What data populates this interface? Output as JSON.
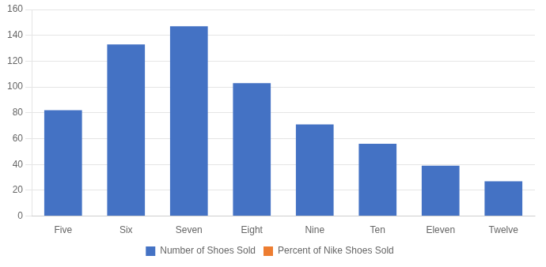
{
  "chart_data": {
    "type": "bar",
    "categories": [
      "Five",
      "Six",
      "Seven",
      "Eight",
      "Nine",
      "Ten",
      "Eleven",
      "Twelve"
    ],
    "series": [
      {
        "name": "Number of Shoes Sold",
        "color": "#4472C4",
        "values": [
          82,
          133,
          147,
          103,
          71,
          56,
          39,
          27
        ]
      },
      {
        "name": "Percent of Nike Shoes Sold",
        "color": "#ED7D31",
        "values": [
          null,
          null,
          null,
          null,
          null,
          null,
          null,
          null
        ]
      }
    ],
    "ylim": [
      0,
      160
    ],
    "yticks": [
      0,
      20,
      40,
      60,
      80,
      100,
      120,
      140,
      160
    ],
    "grid": true,
    "legend": "bottom"
  }
}
